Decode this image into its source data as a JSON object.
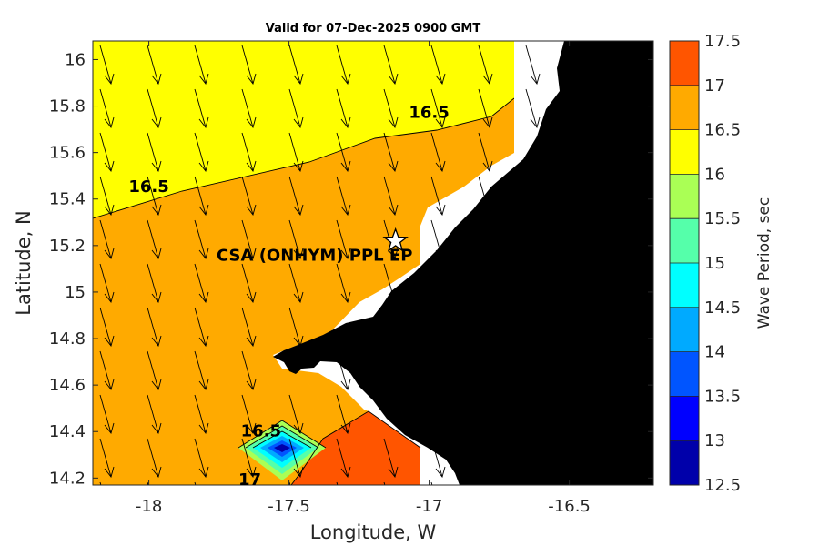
{
  "title": "Valid for 07-Dec-2025 0900 GMT",
  "axes": {
    "xlabel": "Longitude, W",
    "ylabel": "Latitude, N",
    "xlim": [
      -18.2,
      -16.2
    ],
    "ylim": [
      14.17,
      16.08
    ],
    "xticks": [
      "-18",
      "-17.5",
      "-17",
      "-16.5"
    ],
    "xtick_values": [
      -18,
      -17.5,
      -17,
      -16.5
    ],
    "yticks": [
      "14.2",
      "14.4",
      "14.6",
      "14.8",
      "15",
      "15.2",
      "15.4",
      "15.6",
      "15.8",
      "16"
    ],
    "ytick_values": [
      14.2,
      14.4,
      14.6,
      14.8,
      15.0,
      15.2,
      15.4,
      15.6,
      15.8,
      16.0
    ]
  },
  "colorbar": {
    "label": "Wave Period, sec",
    "ticks": [
      "12.5",
      "13",
      "13.5",
      "14",
      "14.5",
      "15",
      "15.5",
      "16",
      "16.5",
      "17",
      "17.5"
    ],
    "levels": [
      {
        "from": 12.5,
        "to": 13.0,
        "color": "#0000aa"
      },
      {
        "from": 13.0,
        "to": 13.5,
        "color": "#0000ff"
      },
      {
        "from": 13.5,
        "to": 14.0,
        "color": "#0055ff"
      },
      {
        "from": 14.0,
        "to": 14.5,
        "color": "#00aaff"
      },
      {
        "from": 14.5,
        "to": 15.0,
        "color": "#00ffff"
      },
      {
        "from": 15.0,
        "to": 15.5,
        "color": "#55ffaa"
      },
      {
        "from": 15.5,
        "to": 16.0,
        "color": "#aaff55"
      },
      {
        "from": 16.0,
        "to": 16.5,
        "color": "#ffff00"
      },
      {
        "from": 16.5,
        "to": 17.0,
        "color": "#ffaa00"
      },
      {
        "from": 17.0,
        "to": 17.5,
        "color": "#ff5500"
      }
    ]
  },
  "contour_labels": [
    {
      "text": "16.5",
      "lon": -18.0,
      "lat": 15.43
    },
    {
      "text": "16.5",
      "lon": -17.0,
      "lat": 15.75
    },
    {
      "text": "16.5",
      "lon": -17.6,
      "lat": 14.38
    },
    {
      "text": "17",
      "lon": -17.64,
      "lat": 14.17
    }
  ],
  "station": {
    "name": "CSA (ONHYM) PPL EP",
    "lon": -17.12,
    "lat": 15.22
  },
  "colors": {
    "land": "#000000",
    "nodata": "#ffffff",
    "arrow": "#000000"
  }
}
